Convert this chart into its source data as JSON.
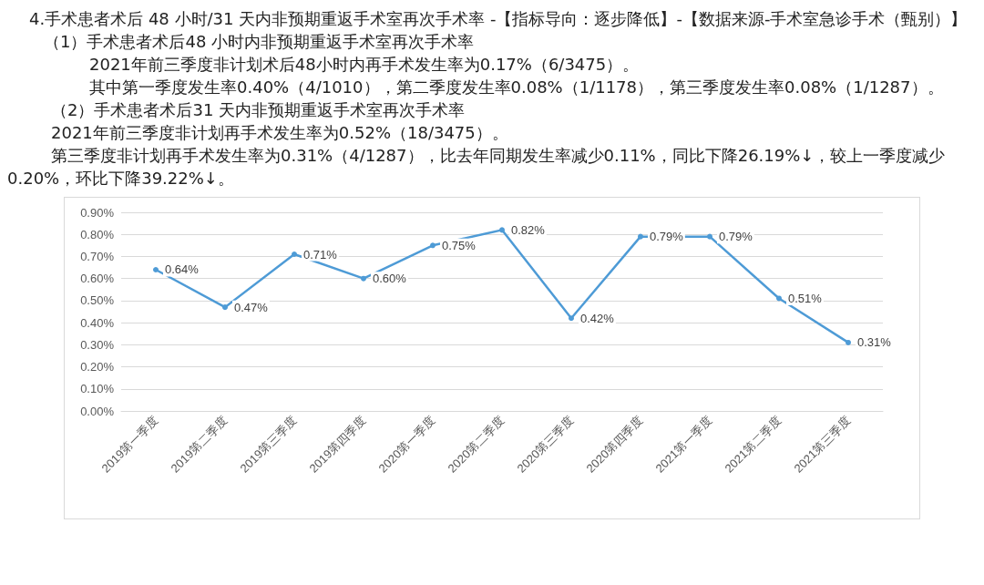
{
  "chart_data": {
    "type": "line",
    "title": "4.手术患者术后 48 小时/31 天内非预期重返手术室再次手术率 -【指标导向：逐步降低】-【数据来源-手术室急诊手术（甄别）】",
    "annotations": [
      "（1）手术患者术后48 小时内非预期重返手术室再次手术率",
      "2021年前三季度非计划术后48小时内再手术发生率为0.17%（6/3475）。",
      "其中第一季度发生率0.40%（4/1010），第二季度发生率0.08%（1/1178），第三季度发生率0.08%（1/1287）。",
      "（2）手术患者术后31 天内非预期重返手术室再次手术率",
      "2021年前三季度非计划再手术发生率为0.52%（18/3475）。",
      "第三季度非计划再手术发生率为0.31%（4/1287），比去年同期发生率减少0.11%，同比下降26.19%↓，较上一季度减少0.20%，环比下降39.22%↓。"
    ],
    "categories": [
      "2019第一季度",
      "2019第二季度",
      "2019第三季度",
      "2019第四季度",
      "2020第一季度",
      "2020第二季度",
      "2020第三季度",
      "2020第四季度",
      "2021第一季度",
      "2021第二季度",
      "2021第三季度"
    ],
    "series": [
      {
        "color": "#4e9bd6",
        "values": [
          0.64,
          0.47,
          0.71,
          0.6,
          0.75,
          0.82,
          0.42,
          0.79,
          0.79,
          0.51,
          0.31
        ],
        "value_labels": [
          "0.64%",
          "0.47%",
          "0.71%",
          "0.60%",
          "0.75%",
          "0.82%",
          "0.42%",
          "0.79%",
          "0.79%",
          "0.51%",
          "0.31%"
        ]
      }
    ],
    "ylim": [
      0,
      0.9
    ],
    "yticks": [
      {
        "value": 0,
        "label": "0.00%"
      },
      {
        "value": 0.1,
        "label": "0.10%"
      },
      {
        "value": 0.2,
        "label": "0.20%"
      },
      {
        "value": 0.3,
        "label": "0.30%"
      },
      {
        "value": 0.4,
        "label": "0.40%"
      },
      {
        "value": 0.5,
        "label": "0.50%"
      },
      {
        "value": 0.6,
        "label": "0.60%"
      },
      {
        "value": 0.7,
        "label": "0.70%"
      },
      {
        "value": 0.8,
        "label": "0.80%"
      },
      {
        "value": 0.9,
        "label": "0.90%"
      }
    ],
    "grid": "y",
    "marker": "circle",
    "line_style": "solid"
  }
}
